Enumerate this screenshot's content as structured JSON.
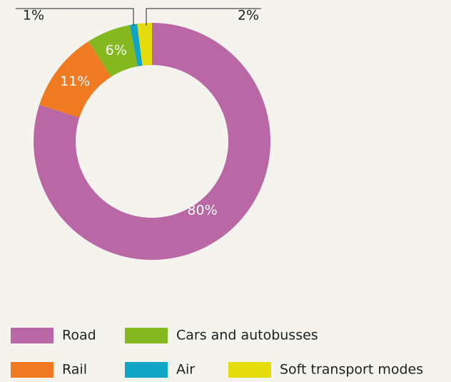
{
  "chart_data": {
    "type": "donut",
    "categories": [
      "Road",
      "Rail",
      "Cars and autobusses",
      "Air",
      "Soft transport modes"
    ],
    "values": [
      80,
      11,
      6,
      1,
      2
    ],
    "value_labels": [
      "80%",
      "11%",
      "6%",
      "1%",
      "2%"
    ],
    "colors": [
      "#b968a5",
      "#ef7a22",
      "#84b81e",
      "#10a5c5",
      "#e6dc0c"
    ],
    "legend": "bottom"
  }
}
